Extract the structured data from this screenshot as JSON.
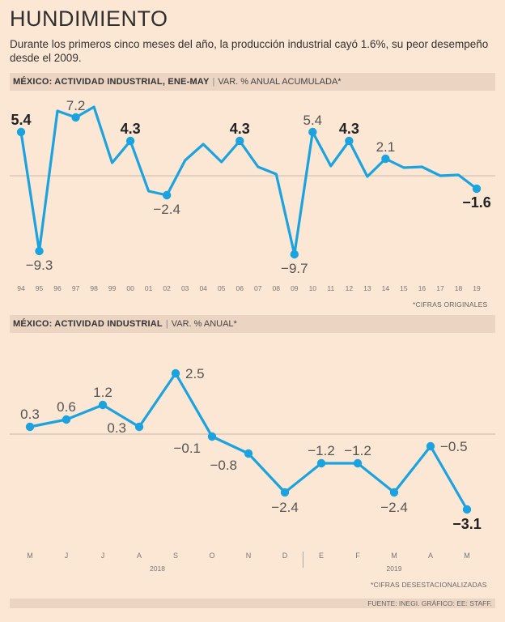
{
  "header": {
    "title": "HUNDIMIENTO",
    "subtitle": "Durante los primeros cinco meses del año, la producción industrial cayó 1.6%, su peor desempeño desde el 2009."
  },
  "chart1_header": {
    "bold": "MÉXICO: ACTIVIDAD INDUSTRIAL, ENE-MAY",
    "rest": "VAR. % ANUAL ACUMULADA*"
  },
  "chart2_header": {
    "bold": "MÉXICO: ACTIVIDAD INDUSTRIAL",
    "rest": "VAR. % ANUAL*"
  },
  "notes": {
    "chart1": "*CIFRAS ORIGINALES",
    "chart2": "*CIFRAS DESESTACIONALIZADAS",
    "source": "FUENTE: INEGI. GRÁFICO: EE: STAFF."
  },
  "colors": {
    "line": "#1ba3e0",
    "zero": "#c8b8ad",
    "background": "#fce6d4",
    "bar": "#ecd4c2"
  },
  "chart_data": [
    {
      "type": "line",
      "title": "MÉXICO: ACTIVIDAD INDUSTRIAL, ENE-MAY",
      "ylabel": "VAR. % ANUAL ACUMULADA",
      "ylim": [
        -12,
        9
      ],
      "x": [
        "94",
        "95",
        "96",
        "97",
        "98",
        "99",
        "00",
        "01",
        "02",
        "03",
        "04",
        "05",
        "06",
        "07",
        "08",
        "09",
        "10",
        "11",
        "12",
        "13",
        "14",
        "15",
        "16",
        "17",
        "18",
        "19"
      ],
      "values": [
        5.4,
        -9.3,
        8.0,
        7.2,
        8.5,
        1.6,
        4.3,
        -1.9,
        -2.4,
        1.9,
        3.9,
        1.7,
        4.3,
        1.1,
        0.2,
        -9.7,
        5.4,
        1.2,
        4.3,
        -0.1,
        2.1,
        1.0,
        1.1,
        0.0,
        0.1,
        -1.6
      ],
      "labels": [
        {
          "i": 0,
          "text": "5.4",
          "pos": "above",
          "bold": true
        },
        {
          "i": 1,
          "text": "-9.3",
          "pos": "below",
          "bold": false
        },
        {
          "i": 3,
          "text": "7.2",
          "pos": "above",
          "bold": false
        },
        {
          "i": 6,
          "text": "4.3",
          "pos": "above",
          "bold": true
        },
        {
          "i": 8,
          "text": "-2.4",
          "pos": "below",
          "bold": false
        },
        {
          "i": 12,
          "text": "4.3",
          "pos": "above",
          "bold": true
        },
        {
          "i": 15,
          "text": "-9.7",
          "pos": "below",
          "bold": false
        },
        {
          "i": 16,
          "text": "5.4",
          "pos": "above",
          "bold": false
        },
        {
          "i": 18,
          "text": "4.3",
          "pos": "above",
          "bold": true
        },
        {
          "i": 20,
          "text": "2.1",
          "pos": "above",
          "bold": false
        },
        {
          "i": 25,
          "text": "-1.6",
          "pos": "below",
          "bold": true
        }
      ]
    },
    {
      "type": "line",
      "title": "MÉXICO: ACTIVIDAD INDUSTRIAL",
      "ylabel": "VAR. % ANUAL",
      "ylim": [
        -4,
        3.5
      ],
      "x": [
        "M",
        "J",
        "J",
        "A",
        "S",
        "O",
        "N",
        "D",
        "E",
        "F",
        "M",
        "A",
        "M"
      ],
      "years": [
        {
          "label": "2018",
          "from": 0,
          "to": 7
        },
        {
          "label": "2019",
          "from": 8,
          "to": 12
        }
      ],
      "values": [
        0.3,
        0.6,
        1.2,
        0.3,
        2.5,
        -0.1,
        -0.8,
        -2.4,
        -1.2,
        -1.2,
        -2.4,
        -0.5,
        -3.1
      ],
      "labels": [
        {
          "i": 0,
          "text": "0.3",
          "pos": "above",
          "bold": false
        },
        {
          "i": 1,
          "text": "0.6",
          "pos": "above",
          "bold": false
        },
        {
          "i": 2,
          "text": "1.2",
          "pos": "above",
          "bold": false
        },
        {
          "i": 3,
          "text": "0.3",
          "pos": "left",
          "bold": false
        },
        {
          "i": 4,
          "text": "2.5",
          "pos": "right",
          "bold": false
        },
        {
          "i": 5,
          "text": "-0.1",
          "pos": "belowleft",
          "bold": false
        },
        {
          "i": 6,
          "text": "-0.8",
          "pos": "belowleft",
          "bold": false
        },
        {
          "i": 7,
          "text": "-2.4",
          "pos": "below",
          "bold": false
        },
        {
          "i": 8,
          "text": "-1.2",
          "pos": "above",
          "bold": false
        },
        {
          "i": 9,
          "text": "-1.2",
          "pos": "above",
          "bold": false
        },
        {
          "i": 10,
          "text": "-2.4",
          "pos": "below",
          "bold": false
        },
        {
          "i": 11,
          "text": "-0.5",
          "pos": "right",
          "bold": false
        },
        {
          "i": 12,
          "text": "-3.1",
          "pos": "below",
          "bold": true
        }
      ]
    }
  ]
}
